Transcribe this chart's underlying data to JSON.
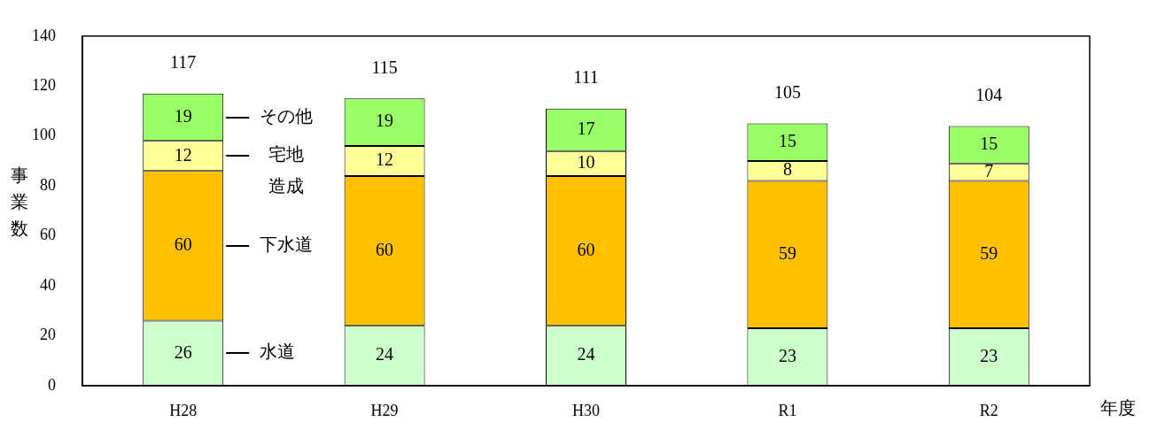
{
  "chart_data": {
    "type": "bar",
    "stacked": true,
    "xlabel": "年度",
    "ylabel": "事業数",
    "categories": [
      "H28",
      "H29",
      "H30",
      "R1",
      "R2"
    ],
    "series": [
      {
        "name": "水道",
        "color": "#ccffcc",
        "values": [
          26,
          24,
          24,
          23,
          23
        ]
      },
      {
        "name": "下水道",
        "color": "#ffc000",
        "values": [
          60,
          60,
          60,
          59,
          59
        ]
      },
      {
        "name": "宅地造成",
        "color": "#ffff99",
        "values": [
          12,
          12,
          10,
          8,
          7
        ]
      },
      {
        "name": "その他",
        "color": "#99ff66",
        "values": [
          19,
          19,
          17,
          15,
          15
        ]
      }
    ],
    "totals": [
      "117",
      "115",
      "111",
      "105",
      "104"
    ],
    "ylim": [
      0,
      140
    ],
    "yticks": [
      0,
      20,
      40,
      60,
      80,
      100,
      120,
      140
    ],
    "grid": false,
    "legend": "bottom left",
    "data_labels": true
  }
}
